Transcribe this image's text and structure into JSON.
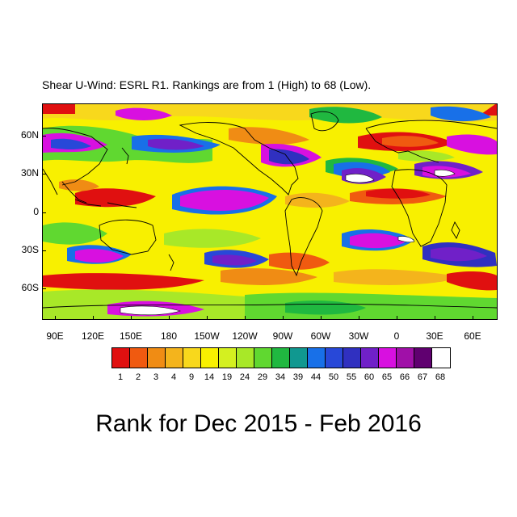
{
  "subtitle": "Shear U-Wind: ESRL R1. Rankings are from 1 (High) to 68 (Low).",
  "title": "Rank for Dec 2015 - Feb 2016",
  "map": {
    "lat_labels": [
      "60N",
      "30N",
      "0",
      "30S",
      "60S"
    ],
    "lon_labels": [
      "90E",
      "120E",
      "150E",
      "180",
      "150W",
      "120W",
      "90W",
      "60W",
      "30W",
      "0",
      "30E",
      "60E"
    ],
    "background_color": "#f8f000",
    "coastline_color": "#000000"
  },
  "colorbar": {
    "labels": [
      "1",
      "2",
      "3",
      "4",
      "9",
      "14",
      "19",
      "24",
      "29",
      "34",
      "39",
      "44",
      "50",
      "55",
      "60",
      "65",
      "66",
      "67",
      "68"
    ],
    "colors": [
      "#e01010",
      "#f05a10",
      "#f08c14",
      "#f4b41c",
      "#f8d81c",
      "#f8f000",
      "#d4f020",
      "#a8e828",
      "#60d830",
      "#20b840",
      "#109890",
      "#1870e8",
      "#2848d8",
      "#3030c0",
      "#7020c8",
      "#d810e0",
      "#a010a8",
      "#600070",
      "#ffffff"
    ]
  }
}
